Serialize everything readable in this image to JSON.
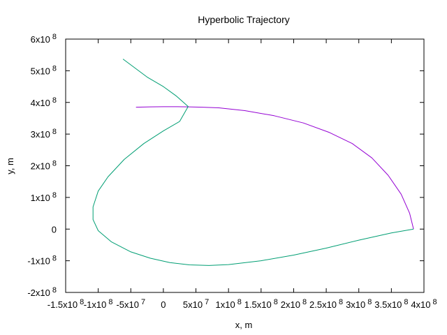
{
  "chart_data": {
    "type": "line",
    "title": "Hyperbolic Trajectory",
    "xlabel": "x, m",
    "ylabel": "y, m",
    "xlim": [
      -150000000,
      400000000
    ],
    "ylim": [
      -200000000,
      600000000
    ],
    "grid": false,
    "legend": "none",
    "x_ticks": [
      {
        "value": -150000000,
        "mantissa": "-1.5x10",
        "exp": "8"
      },
      {
        "value": -100000000,
        "mantissa": "-1x10",
        "exp": "8"
      },
      {
        "value": -50000000,
        "mantissa": "-5x10",
        "exp": "7"
      },
      {
        "value": 0,
        "mantissa": "0",
        "exp": ""
      },
      {
        "value": 50000000,
        "mantissa": "5x10",
        "exp": "7"
      },
      {
        "value": 100000000,
        "mantissa": "1x10",
        "exp": "8"
      },
      {
        "value": 150000000,
        "mantissa": "1.5x10",
        "exp": "8"
      },
      {
        "value": 200000000,
        "mantissa": "2x10",
        "exp": "8"
      },
      {
        "value": 250000000,
        "mantissa": "2.5x10",
        "exp": "8"
      },
      {
        "value": 300000000,
        "mantissa": "3x10",
        "exp": "8"
      },
      {
        "value": 350000000,
        "mantissa": "3.5x10",
        "exp": "8"
      },
      {
        "value": 400000000,
        "mantissa": "4x10",
        "exp": "8"
      }
    ],
    "y_ticks": [
      {
        "value": -200000000,
        "mantissa": "-2x10",
        "exp": "8"
      },
      {
        "value": -100000000,
        "mantissa": "-1x10",
        "exp": "8"
      },
      {
        "value": 0,
        "mantissa": "0",
        "exp": ""
      },
      {
        "value": 100000000,
        "mantissa": "1x10",
        "exp": "8"
      },
      {
        "value": 200000000,
        "mantissa": "2x10",
        "exp": "8"
      },
      {
        "value": 300000000,
        "mantissa": "3x10",
        "exp": "8"
      },
      {
        "value": 400000000,
        "mantissa": "4x10",
        "exp": "8"
      },
      {
        "value": 500000000,
        "mantissa": "5x10",
        "exp": "8"
      },
      {
        "value": 600000000,
        "mantissa": "6x10",
        "exp": "8"
      }
    ],
    "series": [
      {
        "color": "#9400d3",
        "x": [
          384000000,
          378000000,
          365000000,
          345000000,
          320000000,
          290000000,
          255000000,
          215000000,
          170000000,
          125000000,
          85000000,
          60000000,
          38000000,
          20000000,
          0,
          -20000000,
          -42000000
        ],
        "y": [
          0,
          50000000,
          110000000,
          170000000,
          225000000,
          270000000,
          305000000,
          335000000,
          358000000,
          374000000,
          383000000,
          385000000,
          386000000,
          386500000,
          386500000,
          386000000,
          385000000
        ]
      },
      {
        "color": "#009e73",
        "x": [
          384000000,
          350000000,
          300000000,
          250000000,
          200000000,
          150000000,
          100000000,
          70000000,
          40000000,
          10000000,
          -20000000,
          -50000000,
          -80000000,
          -100000000,
          -108000000,
          -108000000,
          -100000000,
          -85000000,
          -60000000,
          -30000000,
          0,
          25000000,
          38000000,
          20000000,
          0,
          -25000000,
          -62000000
        ],
        "y": [
          0,
          -12000000,
          -35000000,
          -60000000,
          -82000000,
          -100000000,
          -112000000,
          -115000000,
          -113000000,
          -106000000,
          -92000000,
          -72000000,
          -40000000,
          -5000000,
          30000000,
          70000000,
          120000000,
          165000000,
          220000000,
          270000000,
          310000000,
          340000000,
          387000000,
          420000000,
          450000000,
          480000000,
          537000000
        ]
      }
    ]
  }
}
